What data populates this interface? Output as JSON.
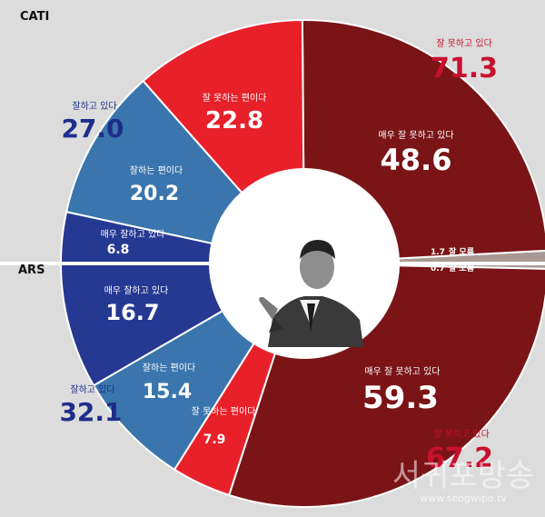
{
  "colors": {
    "very_bad": "#7a1416",
    "bad": "#e8202a",
    "good": "#3a76ad",
    "very_good": "#253892",
    "unknown": "#a89a93",
    "total_bad": "#c8102e",
    "total_good": "#1f2d8a"
  },
  "photo": {
    "icon": "person-pointing-photo"
  },
  "watermark": {
    "text": "서귀포방송",
    "url": "www.seogwipo.tv"
  },
  "chart_data": [
    {
      "type": "pie",
      "title": "CATI",
      "slices": [
        {
          "label": "매우 잘 못하고 있다",
          "value": 48.6,
          "display": "48.6",
          "category": "very_bad"
        },
        {
          "label": "잘 못하는 편이다",
          "value": 22.8,
          "display": "22.8",
          "category": "bad"
        },
        {
          "label": "잘하는 편이다",
          "value": 20.2,
          "display": "20.2",
          "category": "good"
        },
        {
          "label": "매우 잘하고 있다",
          "value": 6.8,
          "display": "6.8",
          "category": "very_good"
        },
        {
          "label": "잘 모름",
          "value": 1.7,
          "display": "1.7",
          "category": "unknown"
        }
      ],
      "totals": [
        {
          "label": "잘 못하고 있다",
          "value": 71.3,
          "display": "71.3"
        },
        {
          "label": "잘하고 있다",
          "value": 27.0,
          "display": "27.0"
        }
      ]
    },
    {
      "type": "pie",
      "title": "ARS",
      "slices": [
        {
          "label": "잘 모름",
          "value": 0.7,
          "display": "0.7",
          "category": "unknown"
        },
        {
          "label": "매우 잘 못하고 있다",
          "value": 59.3,
          "display": "59.3",
          "category": "very_bad"
        },
        {
          "label": "잘 못하는 편이다",
          "value": 7.9,
          "display": "7.9",
          "category": "bad"
        },
        {
          "label": "잘하는 편이다",
          "value": 15.4,
          "display": "15.4",
          "category": "good"
        },
        {
          "label": "매우 잘하고 있다",
          "value": 16.7,
          "display": "16.7",
          "category": "very_good"
        }
      ],
      "totals": [
        {
          "label": "잘 못하고 있다",
          "value": 67.2,
          "display": "67.2"
        },
        {
          "label": "잘하고 있다",
          "value": 32.1,
          "display": "32.1"
        }
      ]
    }
  ]
}
